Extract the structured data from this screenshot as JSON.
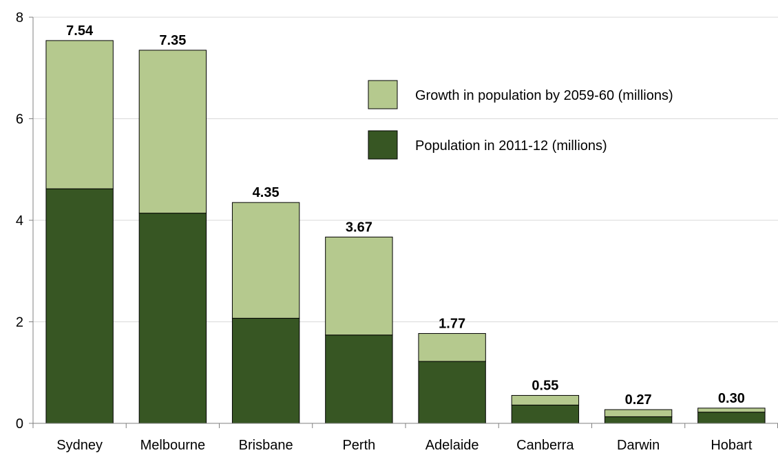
{
  "chart_data": {
    "type": "bar",
    "stacked": true,
    "categories": [
      "Sydney",
      "Melbourne",
      "Brisbane",
      "Perth",
      "Adelaide",
      "Canberra",
      "Darwin",
      "Hobart"
    ],
    "series": [
      {
        "name": "Population in 2011-12 (millions)",
        "color": "#375623",
        "values": [
          4.62,
          4.14,
          2.07,
          1.74,
          1.22,
          0.36,
          0.13,
          0.22
        ]
      },
      {
        "name": "Growth in population by 2059-60 (millions)",
        "color": "#b5c98e",
        "values": [
          2.92,
          3.21,
          2.28,
          1.93,
          0.55,
          0.19,
          0.14,
          0.08
        ]
      }
    ],
    "total_labels": [
      "7.54",
      "7.35",
      "4.35",
      "3.67",
      "1.77",
      "0.55",
      "0.27",
      "0.30"
    ],
    "totals": [
      7.54,
      7.35,
      4.35,
      3.67,
      1.77,
      0.55,
      0.27,
      0.3
    ],
    "y_ticks": [
      0,
      2,
      4,
      6,
      8
    ],
    "ylim": [
      0,
      8
    ],
    "grid": true,
    "legend_position": "top-right",
    "title": "",
    "xlabel": "",
    "ylabel": ""
  }
}
